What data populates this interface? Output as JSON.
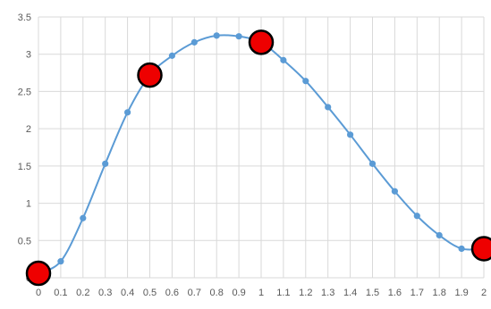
{
  "chart_data": {
    "type": "scatter",
    "xlim": [
      0,
      2
    ],
    "ylim": [
      0,
      3.5
    ],
    "grid": true,
    "x_ticks": [
      "0",
      "0.1",
      "0.2",
      "0.3",
      "0.4",
      "0.5",
      "0.6",
      "0.7",
      "0.8",
      "0.9",
      "1",
      "1.1",
      "1.2",
      "1.3",
      "1.4",
      "1.5",
      "1.6",
      "1.7",
      "1.8",
      "1.9",
      "2"
    ],
    "y_ticks": [
      "0",
      "0.5",
      "1",
      "1.5",
      "2",
      "2.5",
      "3",
      "3.5"
    ],
    "series": [
      {
        "color": "#5b9bd5",
        "smooth": true,
        "points": [
          {
            "x": 0.0,
            "y": 0.06
          },
          {
            "x": 0.1,
            "y": 0.22
          },
          {
            "x": 0.2,
            "y": 0.8
          },
          {
            "x": 0.3,
            "y": 1.53
          },
          {
            "x": 0.4,
            "y": 2.22
          },
          {
            "x": 0.5,
            "y": 2.72
          },
          {
            "x": 0.6,
            "y": 2.98
          },
          {
            "x": 0.7,
            "y": 3.16
          },
          {
            "x": 0.8,
            "y": 3.25
          },
          {
            "x": 0.9,
            "y": 3.24
          },
          {
            "x": 1.0,
            "y": 3.16
          },
          {
            "x": 1.1,
            "y": 2.92
          },
          {
            "x": 1.2,
            "y": 2.64
          },
          {
            "x": 1.3,
            "y": 2.29
          },
          {
            "x": 1.4,
            "y": 1.92
          },
          {
            "x": 1.5,
            "y": 1.53
          },
          {
            "x": 1.6,
            "y": 1.16
          },
          {
            "x": 1.7,
            "y": 0.83
          },
          {
            "x": 1.8,
            "y": 0.57
          },
          {
            "x": 1.9,
            "y": 0.39
          },
          {
            "x": 2.0,
            "y": 0.39
          }
        ]
      }
    ],
    "highlights": {
      "color": "#ee0000",
      "points": [
        {
          "x": 0.0,
          "y": 0.06
        },
        {
          "x": 0.5,
          "y": 2.72
        },
        {
          "x": 1.0,
          "y": 3.16
        },
        {
          "x": 2.0,
          "y": 0.39
        }
      ]
    }
  }
}
